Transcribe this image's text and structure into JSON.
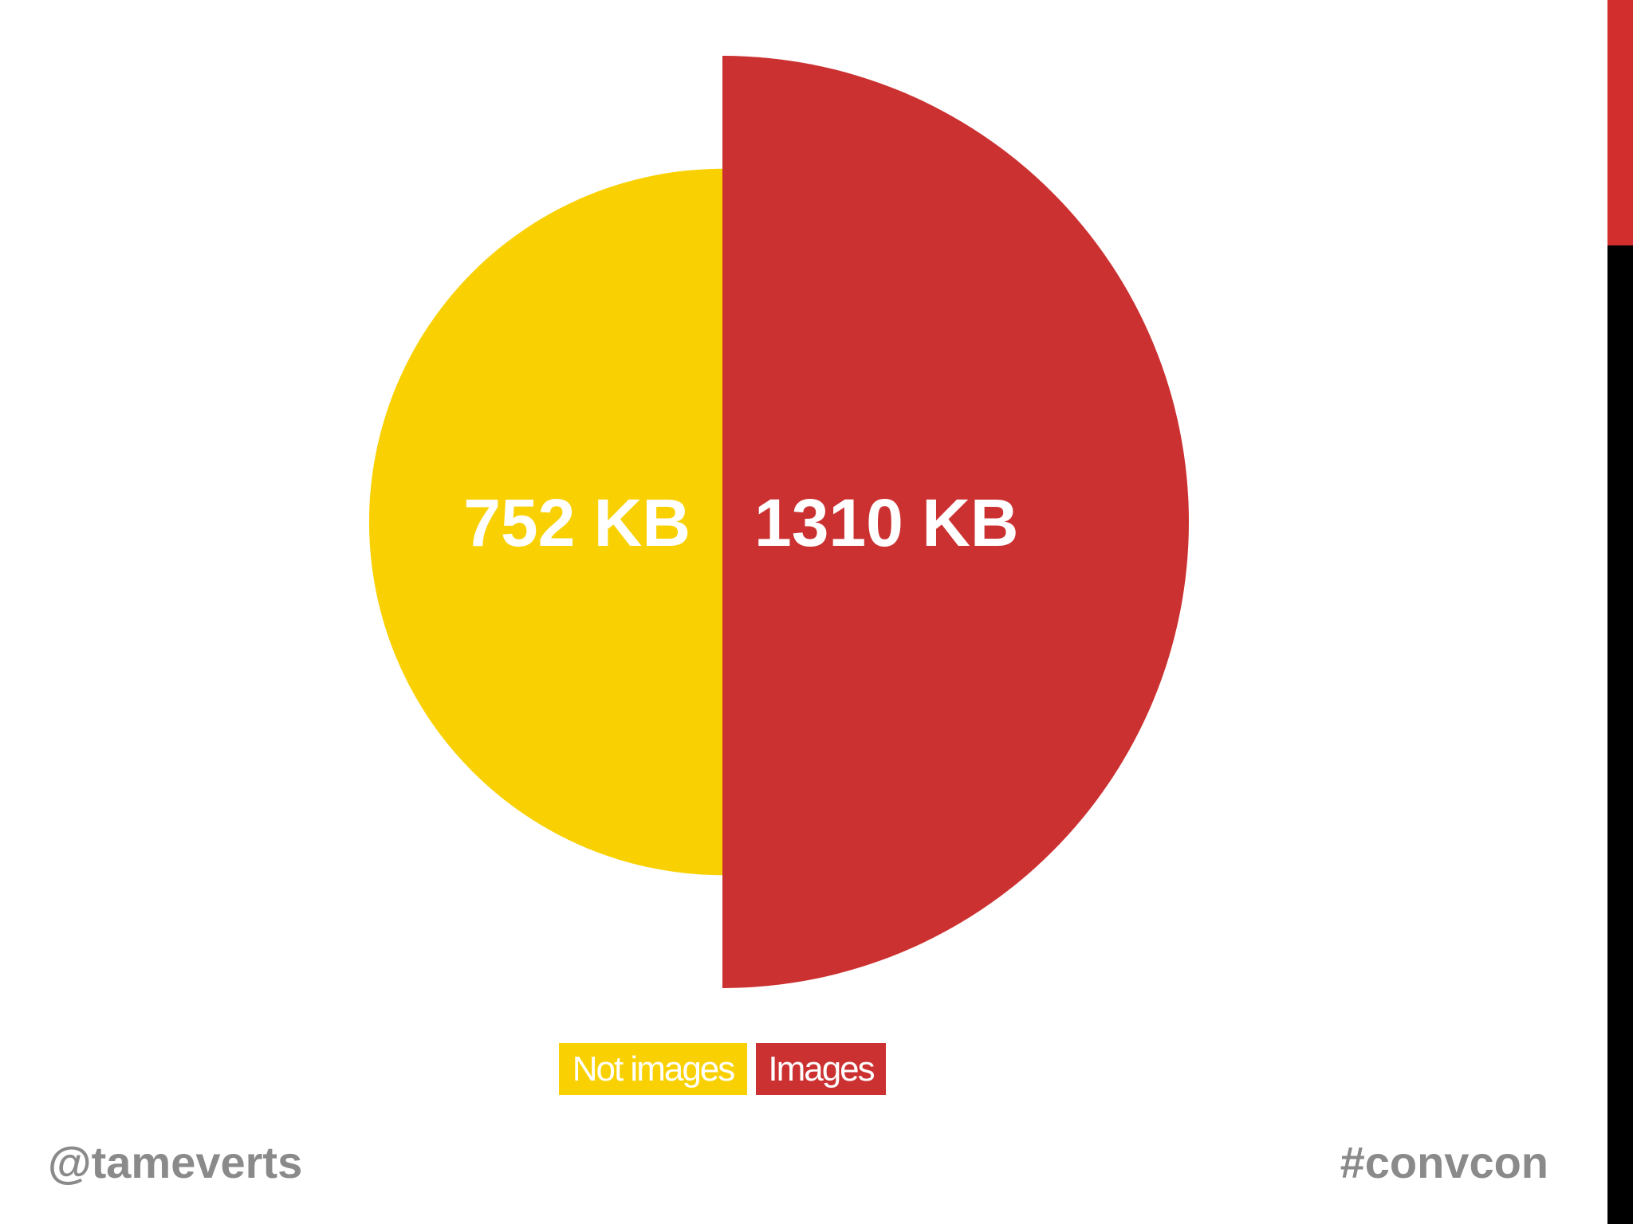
{
  "chart_data": {
    "type": "pie",
    "title": "",
    "slices": [
      {
        "name": "Not images",
        "value": 752,
        "label": "752 KB",
        "color": "#f9d102"
      },
      {
        "name": "Images",
        "value": 1310,
        "label": "1310 KB",
        "color": "#cc3131"
      }
    ],
    "legend": {
      "placement": "bottom-center",
      "entries": [
        "Not images",
        "Images"
      ]
    },
    "style": "radial-proportional-half-circles"
  },
  "footer": {
    "left_handle": "@tameverts",
    "right_hashtag": "#convcon"
  },
  "side_bar": {
    "top_color": "#d32e2e",
    "bottom_color": "#000000"
  }
}
